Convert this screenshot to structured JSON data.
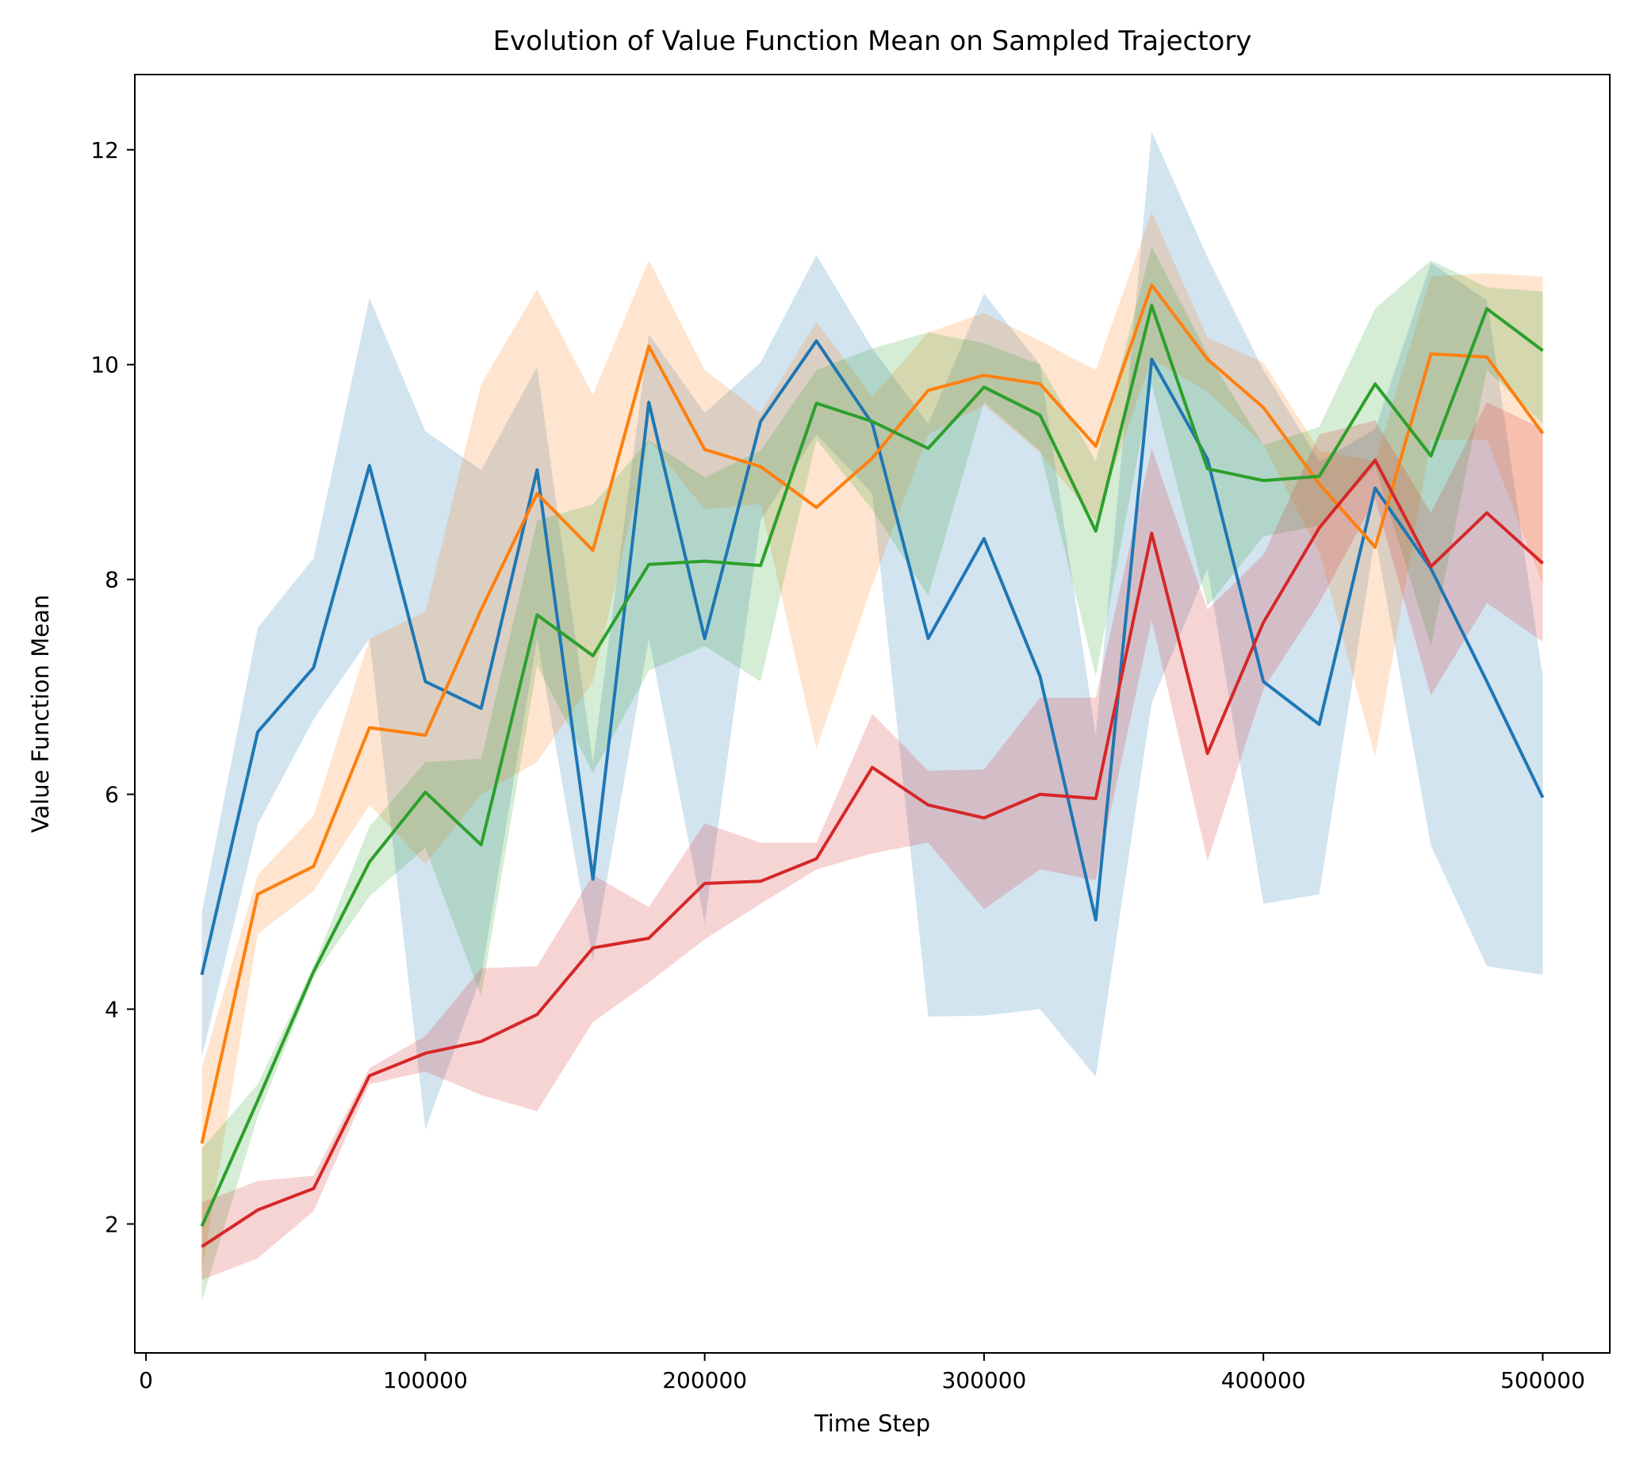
{
  "chart_data": {
    "type": "line",
    "title": "Evolution of Value Function Mean on Sampled Trajectory",
    "xlabel": "Time Step",
    "ylabel": "Value Function Mean",
    "xlim": [
      -4000,
      524000
    ],
    "ylim": [
      0.8,
      12.7
    ],
    "x_ticks": [
      0,
      100000,
      200000,
      300000,
      400000,
      500000
    ],
    "x_tick_labels": [
      "0",
      "100000",
      "200000",
      "300000",
      "400000",
      "500000"
    ],
    "y_ticks": [
      2,
      4,
      6,
      8,
      10,
      12
    ],
    "y_tick_labels": [
      "2",
      "4",
      "6",
      "8",
      "10",
      "12"
    ],
    "grid": false,
    "legend": "none",
    "x": [
      20000,
      40000,
      60000,
      80000,
      100000,
      120000,
      140000,
      160000,
      180000,
      200000,
      220000,
      240000,
      260000,
      280000,
      300000,
      320000,
      340000,
      360000,
      380000,
      400000,
      420000,
      440000,
      460000,
      480000,
      500000
    ],
    "series": [
      {
        "color": "#1f77b4",
        "values": [
          4.32,
          6.58,
          7.18,
          9.06,
          7.05,
          6.8,
          9.02,
          5.21,
          9.65,
          7.45,
          9.47,
          10.22,
          9.45,
          7.45,
          8.38,
          7.1,
          4.83,
          10.05,
          9.12,
          7.05,
          6.65,
          8.85,
          8.1,
          7.05,
          5.97
        ],
        "upper": [
          4.9,
          7.55,
          8.2,
          10.62,
          9.38,
          9.02,
          9.98,
          6.3,
          10.28,
          9.55,
          10.02,
          11.02,
          10.15,
          9.45,
          10.66,
          10.0,
          6.55,
          12.17,
          11.0,
          9.95,
          9.1,
          9.4,
          10.95,
          10.6,
          7.1
        ],
        "lower": [
          3.55,
          5.72,
          6.7,
          7.45,
          2.88,
          4.3,
          7.45,
          4.45,
          7.45,
          4.8,
          8.55,
          9.35,
          8.8,
          3.93,
          3.94,
          4.0,
          3.37,
          6.85,
          8.1,
          4.98,
          5.07,
          8.4,
          5.52,
          4.4,
          4.32
        ]
      },
      {
        "color": "#ff7f0e",
        "values": [
          2.75,
          5.07,
          5.33,
          6.62,
          6.55,
          7.72,
          8.8,
          8.27,
          10.17,
          9.21,
          9.05,
          8.67,
          9.13,
          9.76,
          9.9,
          9.82,
          9.24,
          10.74,
          10.05,
          9.6,
          8.89,
          8.3,
          10.1,
          10.07,
          9.36
        ],
        "upper": [
          3.45,
          5.25,
          5.8,
          7.45,
          7.7,
          9.82,
          10.7,
          9.72,
          10.97,
          9.95,
          9.55,
          10.4,
          9.7,
          10.3,
          10.48,
          10.22,
          9.95,
          11.42,
          10.25,
          10.02,
          9.2,
          9.1,
          10.82,
          10.85,
          10.82
        ],
        "lower": [
          1.55,
          4.7,
          5.1,
          5.9,
          5.35,
          6.0,
          6.3,
          7.05,
          9.3,
          8.65,
          8.7,
          6.42,
          7.95,
          9.35,
          9.62,
          9.18,
          8.55,
          10.05,
          9.75,
          9.25,
          8.25,
          6.35,
          9.3,
          9.3,
          7.95
        ]
      },
      {
        "color": "#2ca02c",
        "values": [
          1.98,
          3.15,
          4.35,
          5.37,
          6.02,
          5.53,
          7.67,
          7.29,
          8.14,
          8.17,
          8.13,
          9.64,
          9.47,
          9.22,
          9.79,
          9.53,
          8.45,
          10.55,
          9.03,
          8.92,
          8.96,
          9.82,
          9.15,
          10.52,
          10.13
        ],
        "upper": [
          2.7,
          3.3,
          4.4,
          5.7,
          6.3,
          6.33,
          8.55,
          8.7,
          9.3,
          8.95,
          9.2,
          9.95,
          10.15,
          10.3,
          10.2,
          10.0,
          9.1,
          11.1,
          10.1,
          9.25,
          9.42,
          10.52,
          10.97,
          10.72,
          10.68
        ],
        "lower": [
          1.28,
          3.0,
          4.3,
          5.05,
          5.5,
          4.12,
          7.2,
          6.2,
          7.15,
          7.38,
          7.05,
          9.3,
          8.65,
          7.85,
          9.65,
          9.2,
          7.1,
          9.82,
          7.75,
          8.4,
          8.5,
          9.05,
          7.38,
          9.95,
          9.45
        ]
      },
      {
        "color": "#d62728",
        "values": [
          1.79,
          2.13,
          2.33,
          3.38,
          3.59,
          3.7,
          3.95,
          4.57,
          4.66,
          5.17,
          5.19,
          5.4,
          6.25,
          5.9,
          5.78,
          6.0,
          5.96,
          8.43,
          6.38,
          7.6,
          8.48,
          9.11,
          8.12,
          8.62,
          8.15
        ],
        "upper": [
          2.2,
          2.4,
          2.45,
          3.45,
          3.75,
          4.38,
          4.4,
          5.25,
          4.95,
          5.73,
          5.55,
          5.55,
          6.75,
          6.22,
          6.23,
          6.9,
          6.9,
          9.22,
          7.72,
          8.23,
          9.35,
          9.48,
          8.62,
          9.65,
          9.4
        ],
        "lower": [
          1.48,
          1.68,
          2.12,
          3.3,
          3.42,
          3.2,
          3.05,
          3.88,
          4.25,
          4.65,
          4.98,
          5.3,
          5.45,
          5.55,
          4.93,
          5.3,
          5.2,
          7.62,
          5.38,
          6.98,
          7.78,
          8.75,
          6.92,
          7.78,
          7.42
        ]
      }
    ]
  }
}
